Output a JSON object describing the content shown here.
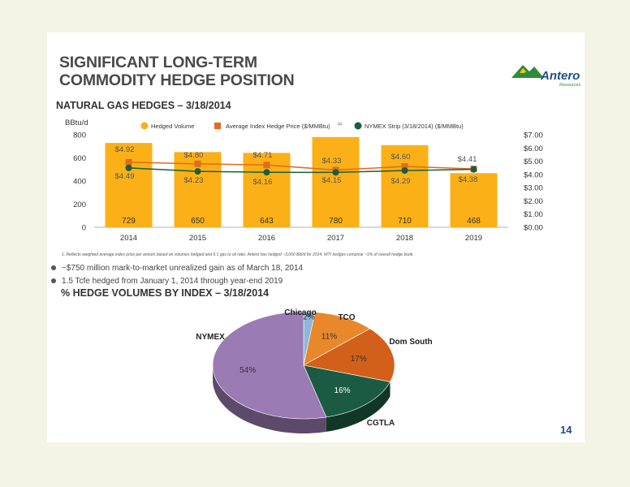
{
  "slide": {
    "title_line1": "SIGNIFICANT LONG-TERM",
    "title_line2": "COMMODITY HEDGE POSITION",
    "logo_text": "Antero",
    "logo_sub": "Resources",
    "subtitle_gas": "NATURAL GAS HEDGES – 3/18/2014",
    "subtitle_index": "% HEDGE VOLUMES BY INDEX – 3/18/2014",
    "footnote": "1.  Reflects weighted average index price per annum based on volumes hedged and 6:1 gas to oil ratio.   Antero has hedged ~3,000 Bbl/d for 2014. WTI hedges comprise ~1% of overall hedge book.",
    "bullets": [
      "~$750 million mark-to-market unrealized gain as of March 18, 2014",
      "1.5 Tcfe hedged from January 1, 2014 through year-end 2019"
    ],
    "page_number": "14",
    "colors": {
      "bar": "#fbb017",
      "index_line": "#e06c1c",
      "nymex_line": "#1b5e3b",
      "title": "#4a4a4a",
      "logo_green": "#2e8b3a",
      "logo_blue": "#1f4e8c"
    }
  },
  "chart_data": [
    {
      "type": "bar",
      "title": "",
      "ylabel": "BBtu/d",
      "ylim": [
        0,
        800
      ],
      "yticks": [
        "0",
        "200",
        "400",
        "600",
        "800"
      ],
      "y2lim": [
        0,
        7
      ],
      "y2ticks": [
        "$0.00",
        "$1.00",
        "$2.00",
        "$3.00",
        "$4.00",
        "$5.00",
        "$6.00",
        "$7.00"
      ],
      "categories": [
        "2014",
        "2015",
        "2016",
        "2017",
        "2018",
        "2019"
      ],
      "legend": [
        {
          "name": "Hedged Volume",
          "color": "#fbb017",
          "marker": "circle"
        },
        {
          "name": "Average Index Hedge Price ($/MMBtu)",
          "sup": "(1)",
          "color": "#e06c1c",
          "marker": "square"
        },
        {
          "name": "NYMEX Strip (3/18/2014) ($/MMBtu)",
          "color": "#1b5e3b",
          "marker": "circle"
        }
      ],
      "series": [
        {
          "name": "Hedged Volume",
          "values": [
            729,
            650,
            643,
            780,
            710,
            468
          ],
          "labels": [
            "729",
            "650",
            "643",
            "780",
            "710",
            "468"
          ]
        },
        {
          "name": "Average Index Hedge Price ($/MMBtu)",
          "values": [
            4.92,
            4.8,
            4.71,
            4.33,
            4.6,
            4.41
          ],
          "labels": [
            "$4.92",
            "$4.80",
            "$4.71",
            "$4.33",
            "$4.60",
            "$4.41"
          ]
        },
        {
          "name": "NYMEX Strip (3/18/2014) ($/MMBtu)",
          "values": [
            4.49,
            4.23,
            4.16,
            4.15,
            4.29,
            4.38
          ],
          "labels": [
            "$4.49",
            "$4.23",
            "$4.16",
            "$4.15",
            "$4.29",
            "$4.38"
          ]
        }
      ]
    },
    {
      "type": "pie",
      "title": "",
      "slices": [
        {
          "name": "Chicago",
          "value": 2,
          "label": "2%",
          "color": "#8fb6d8"
        },
        {
          "name": "TCO",
          "value": 11,
          "label": "11%",
          "color": "#e8882a"
        },
        {
          "name": "Dom South",
          "value": 17,
          "label": "17%",
          "color": "#d25f1a"
        },
        {
          "name": "CGTLA",
          "value": 16,
          "label": "16%",
          "color": "#1c5b43"
        },
        {
          "name": "NYMEX",
          "value": 54,
          "label": "54%",
          "color": "#9b7bb3"
        }
      ]
    }
  ]
}
